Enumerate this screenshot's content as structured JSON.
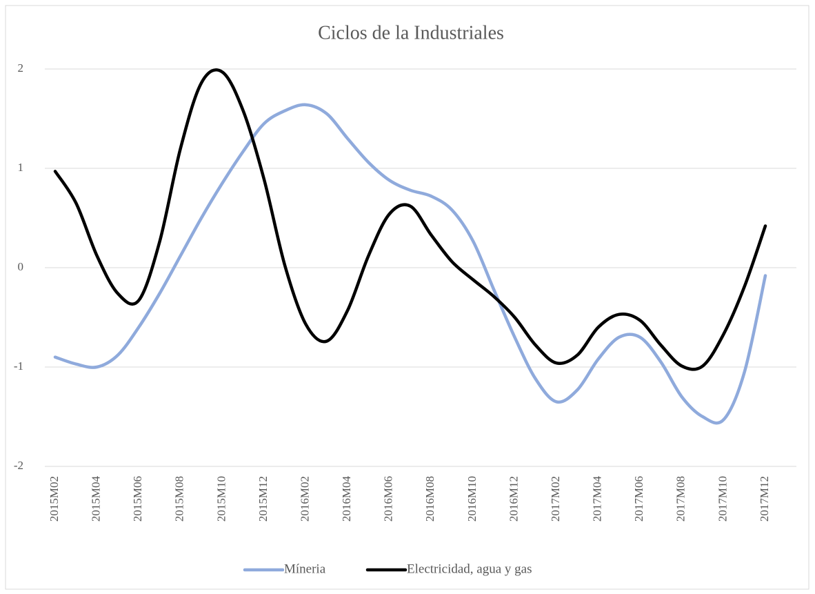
{
  "chart_data": {
    "type": "line",
    "title": "Ciclos de la Industriales",
    "categories": [
      "2015M02",
      null,
      "2015M04",
      null,
      "2015M06",
      null,
      "2015M08",
      null,
      "2015M10",
      null,
      "2015M12",
      null,
      "2016M02",
      null,
      "2016M04",
      null,
      "2016M06",
      null,
      "2016M08",
      null,
      "2016M10",
      null,
      "2016M12",
      null,
      "2017M02",
      null,
      "2017M04",
      null,
      "2017M06",
      null,
      "2017M08",
      null,
      "2017M10",
      null,
      "2017M12"
    ],
    "series": [
      {
        "name": "Míneria",
        "color": "#8faadc",
        "values": [
          -0.9,
          -0.97,
          -1.0,
          -0.88,
          -0.6,
          -0.26,
          0.12,
          0.5,
          0.85,
          1.17,
          1.45,
          1.58,
          1.64,
          1.55,
          1.3,
          1.06,
          0.88,
          0.78,
          0.72,
          0.58,
          0.27,
          -0.22,
          -0.7,
          -1.12,
          -1.35,
          -1.23,
          -0.92,
          -0.7,
          -0.7,
          -0.95,
          -1.3,
          -1.5,
          -1.53,
          -1.05,
          -0.08
        ]
      },
      {
        "name": "Electricidad, agua y gas",
        "color": "#000000",
        "values": [
          0.97,
          0.65,
          0.12,
          -0.26,
          -0.33,
          0.26,
          1.2,
          1.86,
          1.97,
          1.58,
          0.89,
          0.02,
          -0.57,
          -0.74,
          -0.43,
          0.12,
          0.54,
          0.62,
          0.33,
          0.06,
          -0.12,
          -0.29,
          -0.5,
          -0.78,
          -0.96,
          -0.88,
          -0.6,
          -0.47,
          -0.53,
          -0.78,
          -0.99,
          -0.99,
          -0.67,
          -0.19,
          0.42
        ]
      }
    ],
    "ylim": [
      -2,
      2
    ],
    "yticks": [
      -2,
      -1,
      0,
      1,
      2
    ],
    "grid": true,
    "legend": "bottom"
  }
}
